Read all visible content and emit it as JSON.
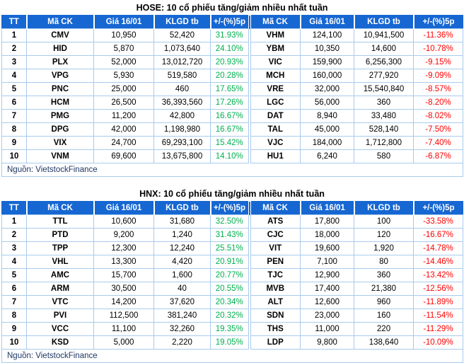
{
  "colors": {
    "header_bg": "#1667D2",
    "header_text": "#FFFFFF",
    "grid_border": "#A9CBED",
    "positive": "#00B050",
    "negative": "#FF0000",
    "title_text": "#000000",
    "source_text": "#1F3864"
  },
  "tables": [
    {
      "title": "HOSE: 10 cổ phiếu tăng/giảm nhiều nhất tuần",
      "headers": [
        "TT",
        "Mã CK",
        "Giá 16/01",
        "KLGD tb",
        "+/-(%)5p",
        "Mã CK",
        "Giá 16/01",
        "KLGD tb",
        "+/-(%)5p"
      ],
      "source": "Nguồn: VietstockFinance",
      "rows": [
        [
          "1",
          "CMV",
          "10,950",
          "52,420",
          "31.93%",
          "VHM",
          "124,100",
          "10,941,500",
          "-11.36%"
        ],
        [
          "2",
          "HID",
          "5,870",
          "1,073,640",
          "24.10%",
          "YBM",
          "10,350",
          "14,600",
          "-10.78%"
        ],
        [
          "3",
          "PLX",
          "52,000",
          "13,012,720",
          "20.93%",
          "VIC",
          "159,900",
          "6,256,300",
          "-9.15%"
        ],
        [
          "4",
          "VPG",
          "5,930",
          "519,580",
          "20.28%",
          "MCH",
          "160,000",
          "277,920",
          "-9.09%"
        ],
        [
          "5",
          "PNC",
          "25,000",
          "460",
          "17.65%",
          "VRE",
          "32,000",
          "15,540,840",
          "-8.57%"
        ],
        [
          "6",
          "HCM",
          "26,500",
          "36,393,560",
          "17.26%",
          "LGC",
          "56,000",
          "360",
          "-8.20%"
        ],
        [
          "7",
          "PMG",
          "11,200",
          "42,800",
          "16.67%",
          "DAT",
          "8,940",
          "33,480",
          "-8.02%"
        ],
        [
          "8",
          "DPG",
          "42,000",
          "1,198,980",
          "16.67%",
          "TAL",
          "45,000",
          "528,140",
          "-7.50%"
        ],
        [
          "9",
          "VIX",
          "24,700",
          "69,293,100",
          "15.42%",
          "VJC",
          "184,000",
          "1,712,800",
          "-7.40%"
        ],
        [
          "10",
          "VNM",
          "69,600",
          "13,675,800",
          "14.10%",
          "HU1",
          "6,240",
          "580",
          "-6.87%"
        ]
      ]
    },
    {
      "title": "HNX: 10 cổ phiếu tăng/giảm nhiều nhất tuần",
      "headers": [
        "TT",
        "Mã CK",
        "Giá 16/01",
        "KLGD tb",
        "+/-(%)5p",
        "Mã CK",
        "Giá 16/01",
        "KLGD tb",
        "+/-(%)5p"
      ],
      "source": "Nguồn: VietstockFinance",
      "rows": [
        [
          "1",
          "TTL",
          "10,600",
          "31,680",
          "32.50%",
          "ATS",
          "17,800",
          "100",
          "-33.58%"
        ],
        [
          "2",
          "PTD",
          "9,200",
          "1,240",
          "31.43%",
          "CJC",
          "18,000",
          "120",
          "-16.67%"
        ],
        [
          "3",
          "TPP",
          "12,300",
          "12,240",
          "25.51%",
          "VIT",
          "19,600",
          "1,920",
          "-14.78%"
        ],
        [
          "4",
          "VHL",
          "13,300",
          "4,420",
          "20.91%",
          "PEN",
          "7,100",
          "80",
          "-14.46%"
        ],
        [
          "5",
          "AMC",
          "15,700",
          "1,600",
          "20.77%",
          "TJC",
          "12,900",
          "360",
          "-13.42%"
        ],
        [
          "6",
          "ARM",
          "30,500",
          "40",
          "20.55%",
          "MVB",
          "17,400",
          "21,380",
          "-12.56%"
        ],
        [
          "7",
          "VTC",
          "14,200",
          "37,620",
          "20.34%",
          "ALT",
          "12,600",
          "960",
          "-11.89%"
        ],
        [
          "8",
          "PVI",
          "112,500",
          "381,240",
          "20.32%",
          "SDN",
          "23,000",
          "160",
          "-11.54%"
        ],
        [
          "9",
          "VCC",
          "11,100",
          "32,260",
          "19.35%",
          "THS",
          "11,000",
          "220",
          "-11.29%"
        ],
        [
          "10",
          "KSD",
          "5,000",
          "2,220",
          "19.05%",
          "LDP",
          "9,800",
          "138,640",
          "-10.09%"
        ]
      ]
    }
  ],
  "chart_data": [
    {
      "type": "table",
      "title": "HOSE: 10 cổ phiếu tăng/giảm nhiều nhất tuần",
      "columns": [
        "TT",
        "Mã CK",
        "Giá 16/01",
        "KLGD tb",
        "+/-(%)5p",
        "Mã CK",
        "Giá 16/01",
        "KLGD tb",
        "+/-(%)5p"
      ],
      "gainers": [
        {
          "rank": 1,
          "code": "CMV",
          "price": 10950,
          "avg_volume": 52420,
          "change_pct": 31.93
        },
        {
          "rank": 2,
          "code": "HID",
          "price": 5870,
          "avg_volume": 1073640,
          "change_pct": 24.1
        },
        {
          "rank": 3,
          "code": "PLX",
          "price": 52000,
          "avg_volume": 13012720,
          "change_pct": 20.93
        },
        {
          "rank": 4,
          "code": "VPG",
          "price": 5930,
          "avg_volume": 519580,
          "change_pct": 20.28
        },
        {
          "rank": 5,
          "code": "PNC",
          "price": 25000,
          "avg_volume": 460,
          "change_pct": 17.65
        },
        {
          "rank": 6,
          "code": "HCM",
          "price": 26500,
          "avg_volume": 36393560,
          "change_pct": 17.26
        },
        {
          "rank": 7,
          "code": "PMG",
          "price": 11200,
          "avg_volume": 42800,
          "change_pct": 16.67
        },
        {
          "rank": 8,
          "code": "DPG",
          "price": 42000,
          "avg_volume": 1198980,
          "change_pct": 16.67
        },
        {
          "rank": 9,
          "code": "VIX",
          "price": 24700,
          "avg_volume": 69293100,
          "change_pct": 15.42
        },
        {
          "rank": 10,
          "code": "VNM",
          "price": 69600,
          "avg_volume": 13675800,
          "change_pct": 14.1
        }
      ],
      "losers": [
        {
          "rank": 1,
          "code": "VHM",
          "price": 124100,
          "avg_volume": 10941500,
          "change_pct": -11.36
        },
        {
          "rank": 2,
          "code": "YBM",
          "price": 10350,
          "avg_volume": 14600,
          "change_pct": -10.78
        },
        {
          "rank": 3,
          "code": "VIC",
          "price": 159900,
          "avg_volume": 6256300,
          "change_pct": -9.15
        },
        {
          "rank": 4,
          "code": "MCH",
          "price": 160000,
          "avg_volume": 277920,
          "change_pct": -9.09
        },
        {
          "rank": 5,
          "code": "VRE",
          "price": 32000,
          "avg_volume": 15540840,
          "change_pct": -8.57
        },
        {
          "rank": 6,
          "code": "LGC",
          "price": 56000,
          "avg_volume": 360,
          "change_pct": -8.2
        },
        {
          "rank": 7,
          "code": "DAT",
          "price": 8940,
          "avg_volume": 33480,
          "change_pct": -8.02
        },
        {
          "rank": 8,
          "code": "TAL",
          "price": 45000,
          "avg_volume": 528140,
          "change_pct": -7.5
        },
        {
          "rank": 9,
          "code": "VJC",
          "price": 184000,
          "avg_volume": 1712800,
          "change_pct": -7.4
        },
        {
          "rank": 10,
          "code": "HU1",
          "price": 6240,
          "avg_volume": 580,
          "change_pct": -6.87
        }
      ],
      "source": "Nguồn: VietstockFinance"
    },
    {
      "type": "table",
      "title": "HNX: 10 cổ phiếu tăng/giảm nhiều nhất tuần",
      "columns": [
        "TT",
        "Mã CK",
        "Giá 16/01",
        "KLGD tb",
        "+/-(%)5p",
        "Mã CK",
        "Giá 16/01",
        "KLGD tb",
        "+/-(%)5p"
      ],
      "gainers": [
        {
          "rank": 1,
          "code": "TTL",
          "price": 10600,
          "avg_volume": 31680,
          "change_pct": 32.5
        },
        {
          "rank": 2,
          "code": "PTD",
          "price": 9200,
          "avg_volume": 1240,
          "change_pct": 31.43
        },
        {
          "rank": 3,
          "code": "TPP",
          "price": 12300,
          "avg_volume": 12240,
          "change_pct": 25.51
        },
        {
          "rank": 4,
          "code": "VHL",
          "price": 13300,
          "avg_volume": 4420,
          "change_pct": 20.91
        },
        {
          "rank": 5,
          "code": "AMC",
          "price": 15700,
          "avg_volume": 1600,
          "change_pct": 20.77
        },
        {
          "rank": 6,
          "code": "ARM",
          "price": 30500,
          "avg_volume": 40,
          "change_pct": 20.55
        },
        {
          "rank": 7,
          "code": "VTC",
          "price": 14200,
          "avg_volume": 37620,
          "change_pct": 20.34
        },
        {
          "rank": 8,
          "code": "PVI",
          "price": 112500,
          "avg_volume": 381240,
          "change_pct": 20.32
        },
        {
          "rank": 9,
          "code": "VCC",
          "price": 11100,
          "avg_volume": 32260,
          "change_pct": 19.35
        },
        {
          "rank": 10,
          "code": "KSD",
          "price": 5000,
          "avg_volume": 2220,
          "change_pct": 19.05
        }
      ],
      "losers": [
        {
          "rank": 1,
          "code": "ATS",
          "price": 17800,
          "avg_volume": 100,
          "change_pct": -33.58
        },
        {
          "rank": 2,
          "code": "CJC",
          "price": 18000,
          "avg_volume": 120,
          "change_pct": -16.67
        },
        {
          "rank": 3,
          "code": "VIT",
          "price": 19600,
          "avg_volume": 1920,
          "change_pct": -14.78
        },
        {
          "rank": 4,
          "code": "PEN",
          "price": 7100,
          "avg_volume": 80,
          "change_pct": -14.46
        },
        {
          "rank": 5,
          "code": "TJC",
          "price": 12900,
          "avg_volume": 360,
          "change_pct": -13.42
        },
        {
          "rank": 6,
          "code": "MVB",
          "price": 17400,
          "avg_volume": 21380,
          "change_pct": -12.56
        },
        {
          "rank": 7,
          "code": "ALT",
          "price": 12600,
          "avg_volume": 960,
          "change_pct": -11.89
        },
        {
          "rank": 8,
          "code": "SDN",
          "price": 23000,
          "avg_volume": 160,
          "change_pct": -11.54
        },
        {
          "rank": 9,
          "code": "THS",
          "price": 11000,
          "avg_volume": 220,
          "change_pct": -11.29
        },
        {
          "rank": 10,
          "code": "LDP",
          "price": 9800,
          "avg_volume": 138640,
          "change_pct": -10.09
        }
      ],
      "source": "Nguồn: VietstockFinance"
    }
  ]
}
